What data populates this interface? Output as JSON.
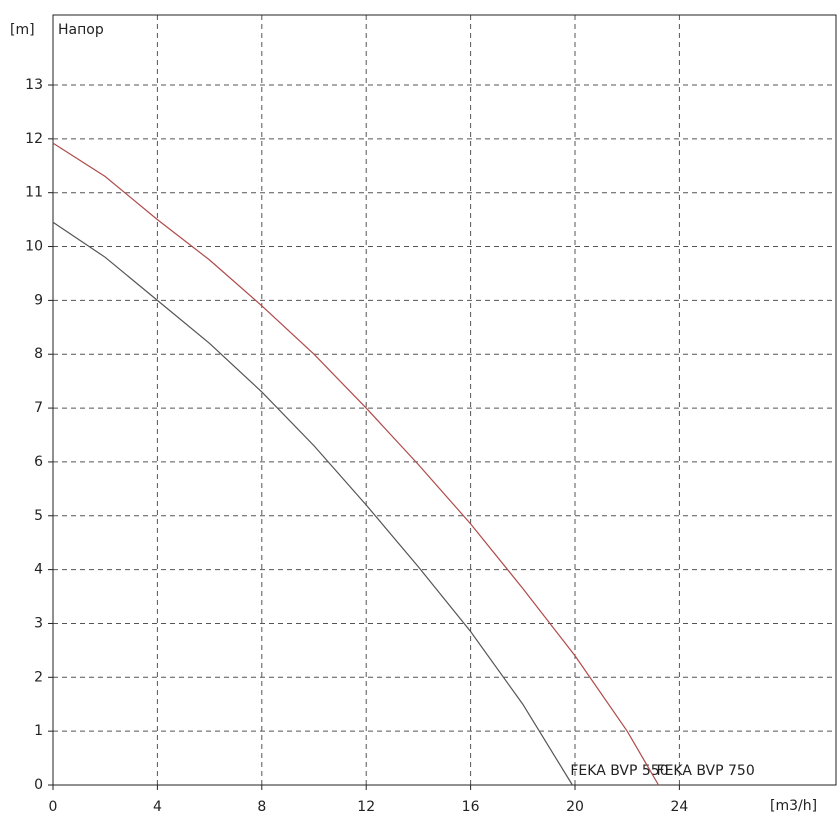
{
  "chart_data": {
    "type": "line",
    "title": "Напор",
    "ylabel": "[m]",
    "xlabel": "[m3/h]",
    "xlim": [
      0,
      30
    ],
    "ylim": [
      0,
      14.3
    ],
    "xticks": [
      0,
      4,
      8,
      12,
      16,
      20,
      24
    ],
    "yticks": [
      0,
      1,
      2,
      3,
      4,
      5,
      6,
      7,
      8,
      9,
      10,
      11,
      12,
      13
    ],
    "grid": true,
    "series": [
      {
        "name": "FEKA BVP 550",
        "color": "#555555",
        "x": [
          0,
          2,
          4,
          6,
          8,
          10,
          12,
          14,
          16,
          18,
          19.9
        ],
        "values": [
          10.45,
          9.8,
          9.0,
          8.2,
          7.3,
          6.3,
          5.2,
          4.05,
          2.85,
          1.5,
          0
        ]
      },
      {
        "name": "FEKA BVP 750",
        "color": "#b04a4a",
        "x": [
          0,
          2,
          4,
          6,
          8,
          10,
          12,
          14,
          16,
          18,
          20,
          22,
          23.2
        ],
        "values": [
          11.92,
          11.3,
          10.5,
          9.75,
          8.9,
          8.0,
          7.0,
          5.95,
          4.85,
          3.65,
          2.4,
          1.0,
          0
        ]
      }
    ]
  }
}
